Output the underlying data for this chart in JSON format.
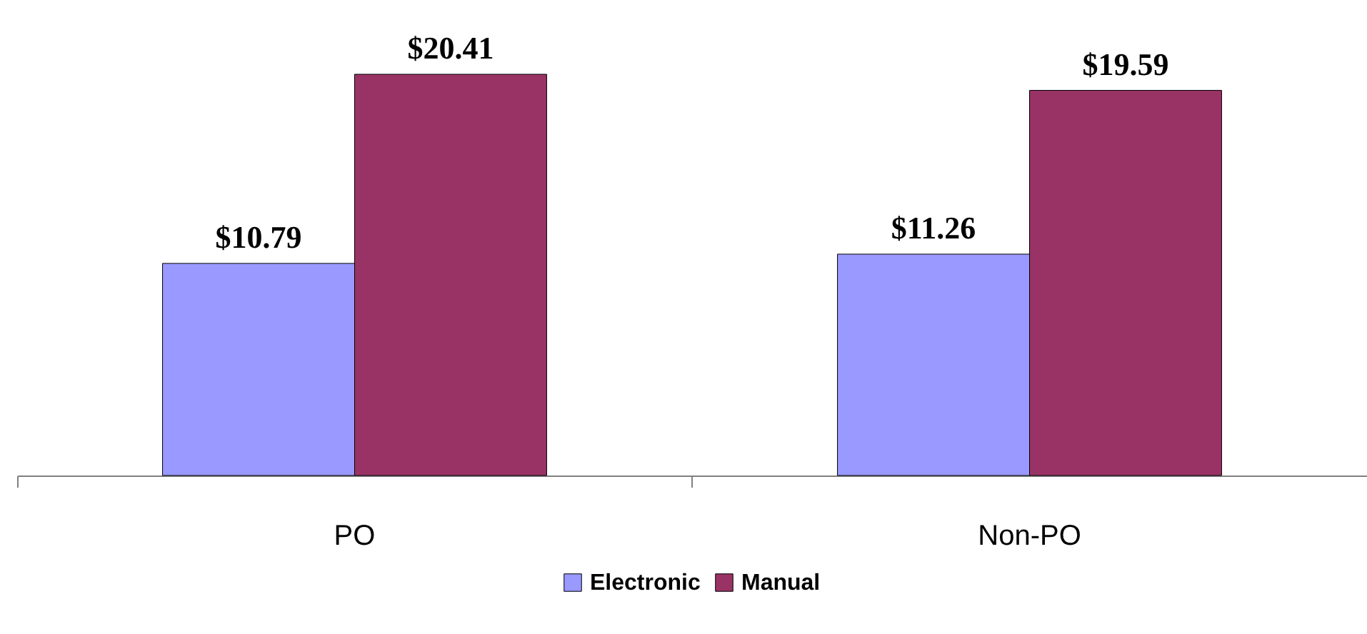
{
  "chart_data": {
    "type": "bar",
    "categories": [
      "PO",
      "Non-PO"
    ],
    "series": [
      {
        "name": "Electronic",
        "color": "#9999ff",
        "values": [
          10.79,
          11.26
        ],
        "value_labels": [
          "$10.79",
          "$11.26"
        ]
      },
      {
        "name": "Manual",
        "color": "#993366",
        "values": [
          20.41,
          19.59
        ],
        "value_labels": [
          "$20.41",
          "$19.59"
        ]
      }
    ],
    "legend": "bottom",
    "grid": false,
    "tick_labels": "x"
  }
}
